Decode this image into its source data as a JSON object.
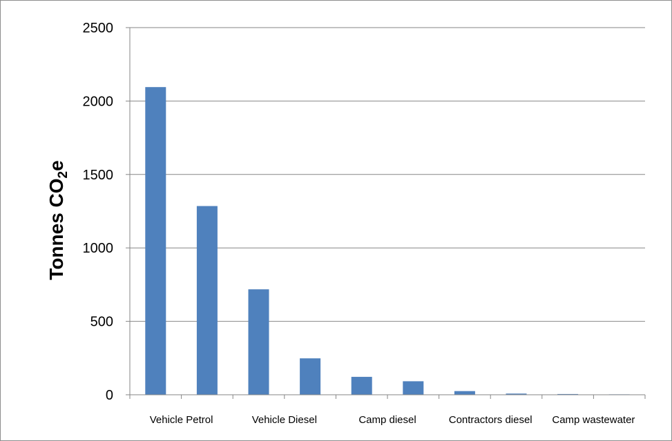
{
  "chart_data": {
    "type": "bar",
    "title": "",
    "xlabel": "",
    "ylabel": "Tonnes CO",
    "ylabel_subscript": "2",
    "ylabel_suffix": "e",
    "ylim": [
      0,
      2500
    ],
    "yticks": [
      "0",
      "500",
      "1000",
      "1500",
      "2000",
      "2500"
    ],
    "grid": true,
    "legend": "none",
    "bar_color": "#4f81bd",
    "categories": [
      "Vehicle Petrol",
      "",
      "Vehicle Diesel",
      "",
      "Camp diesel",
      "",
      "Contractors diesel",
      "",
      "Camp wastewater",
      ""
    ],
    "values": [
      2095,
      1285,
      718,
      248,
      122,
      92,
      25,
      8,
      5,
      3
    ]
  }
}
